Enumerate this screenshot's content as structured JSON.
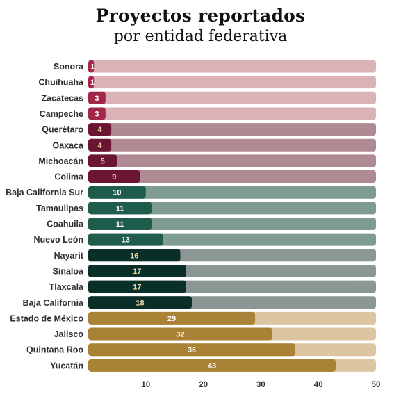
{
  "chart_data": {
    "type": "bar",
    "orientation": "horizontal",
    "title": "Proyectos reportados",
    "subtitle": "por entidad federativa",
    "xlim": [
      0,
      50
    ],
    "xticks": [
      10,
      20,
      30,
      40,
      50
    ],
    "grid": false,
    "legend": "none",
    "categories": [
      "Sonora",
      "Chuihuaha",
      "Zacatecas",
      "Campeche",
      "Querétaro",
      "Oaxaca",
      "Michoacán",
      "Colima",
      "Baja California Sur",
      "Tamaulipas",
      "Coahuila",
      "Nuevo León",
      "Nayarit",
      "Sinaloa",
      "Tlaxcala",
      "Baja California",
      "Estado de México",
      "Jalisco",
      "Quintana Roo",
      "Yucatán"
    ],
    "values": [
      1,
      1,
      3,
      3,
      4,
      4,
      5,
      9,
      10,
      11,
      11,
      13,
      16,
      17,
      17,
      18,
      29,
      32,
      36,
      43
    ],
    "color_groups": [
      {
        "bar": "#a3264b",
        "track": "#dbb2b5",
        "label": "#ffffff",
        "count": 4
      },
      {
        "bar": "#6c1434",
        "track": "#b08a93",
        "label": "#f0dba8",
        "count": 4
      },
      {
        "bar": "#1f5c4e",
        "track": "#7f9c92",
        "label": "#ffffff",
        "count": 4
      },
      {
        "bar": "#0a2e28",
        "track": "#8b9794",
        "label": "#f0dba8",
        "count": 4
      },
      {
        "bar": "#a98237",
        "track": "#dcc6a1",
        "label": "#ffffff",
        "count": 4
      }
    ]
  }
}
